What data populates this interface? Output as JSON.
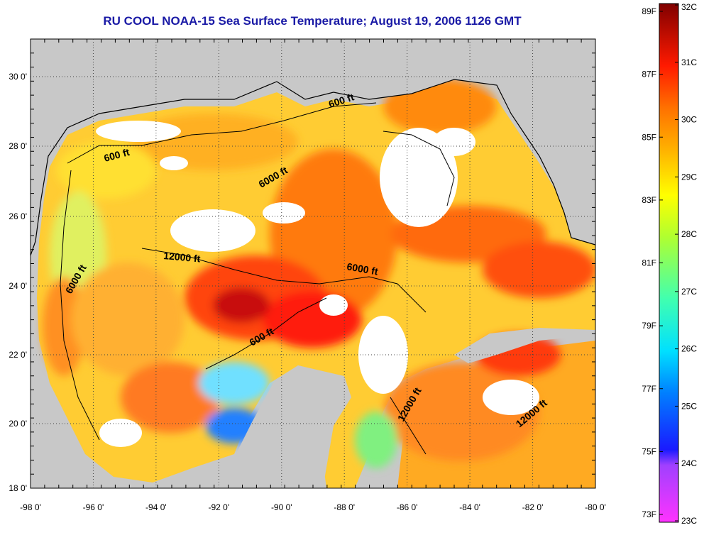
{
  "title": "RU COOL  NOAA-15  Sea Surface Temperature;  August 19, 2006 1126 GMT",
  "map": {
    "x_ticks": [
      "-98 0'",
      "-96 0'",
      "-94 0'",
      "-92 0'",
      "-90 0'",
      "-88 0'",
      "-86 0'",
      "-84 0'",
      "-82 0'",
      "-80 0'"
    ],
    "y_ticks": [
      "30 0'",
      "28 0'",
      "26 0'",
      "24 0'",
      "22 0'",
      "20 0'",
      "18 0'"
    ],
    "contours": [
      {
        "label": "600 ft"
      },
      {
        "label": "600 ft"
      },
      {
        "label": "600 ft"
      },
      {
        "label": "6000 ft"
      },
      {
        "label": "6000 ft"
      },
      {
        "label": "6000 ft"
      },
      {
        "label": "12000 ft"
      },
      {
        "label": "12000 ft"
      },
      {
        "label": "12000 ft"
      }
    ],
    "colors": {
      "land": "#c8c8c8",
      "ocean_background": "#ffffff"
    }
  },
  "colorbar": {
    "fahrenheit": [
      "89F",
      "87F",
      "85F",
      "83F",
      "81F",
      "79F",
      "77F",
      "75F",
      "73F"
    ],
    "celsius": [
      "32C",
      "31C",
      "30C",
      "29C",
      "28C",
      "27C",
      "26C",
      "25C",
      "24C",
      "23C"
    ]
  }
}
